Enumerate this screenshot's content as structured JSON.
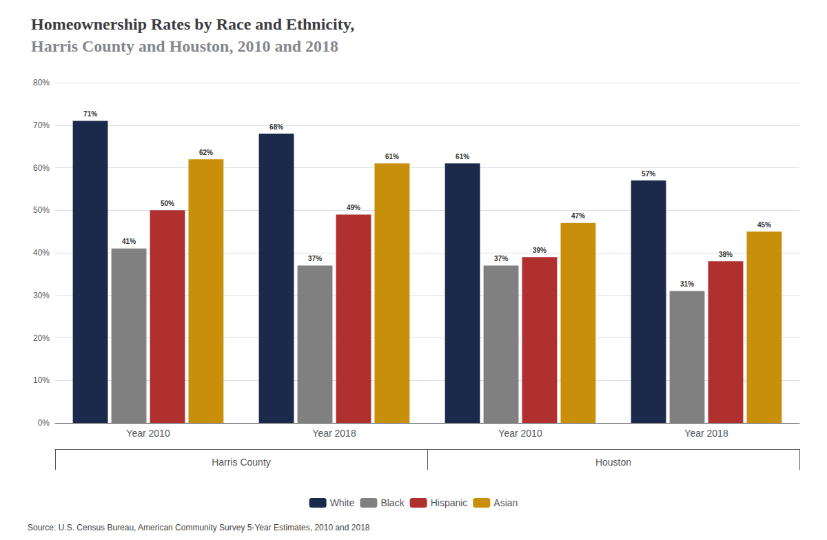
{
  "chart_data": {
    "type": "bar",
    "title": "Homeownership Rates by Race and Ethnicity,",
    "subtitle": "Harris County and Houston, 2010 and 2018",
    "categories": [
      "Year 2010",
      "Year 2018",
      "Year 2010",
      "Year 2018"
    ],
    "section_labels": [
      "Harris County",
      "Houston"
    ],
    "series": [
      {
        "name": "White",
        "color": "#1b2a4a",
        "values": [
          71,
          68,
          61,
          57
        ],
        "value_labels": [
          "71%",
          "68%",
          "61%",
          "57%"
        ]
      },
      {
        "name": "Black",
        "color": "#808080",
        "values": [
          41,
          37,
          37,
          31
        ],
        "value_labels": [
          "41%",
          "37%",
          "37%",
          "31%"
        ]
      },
      {
        "name": "Hispanic",
        "color": "#b03030",
        "values": [
          50,
          49,
          39,
          38
        ],
        "value_labels": [
          "50%",
          "49%",
          "39%",
          "38%"
        ]
      },
      {
        "name": "Asian",
        "color": "#c8900a",
        "values": [
          62,
          61,
          47,
          45
        ],
        "value_labels": [
          "62%",
          "61%",
          "47%",
          "45%"
        ]
      }
    ],
    "ylim": [
      0,
      80
    ],
    "yticks": [
      {
        "value": 0,
        "label": "0%"
      },
      {
        "value": 10,
        "label": "10%"
      },
      {
        "value": 20,
        "label": "20%"
      },
      {
        "value": 30,
        "label": "30%"
      },
      {
        "value": 40,
        "label": "40%"
      },
      {
        "value": 50,
        "label": "50%"
      },
      {
        "value": 60,
        "label": "60%"
      },
      {
        "value": 70,
        "label": "70%"
      },
      {
        "value": 80,
        "label": "80%"
      }
    ],
    "grid": true,
    "legend": "bottom",
    "data_labels": true,
    "source": "Source: U.S. Census Bureau, American Community Survey 5-Year Estimates, 2010 and 2018"
  }
}
